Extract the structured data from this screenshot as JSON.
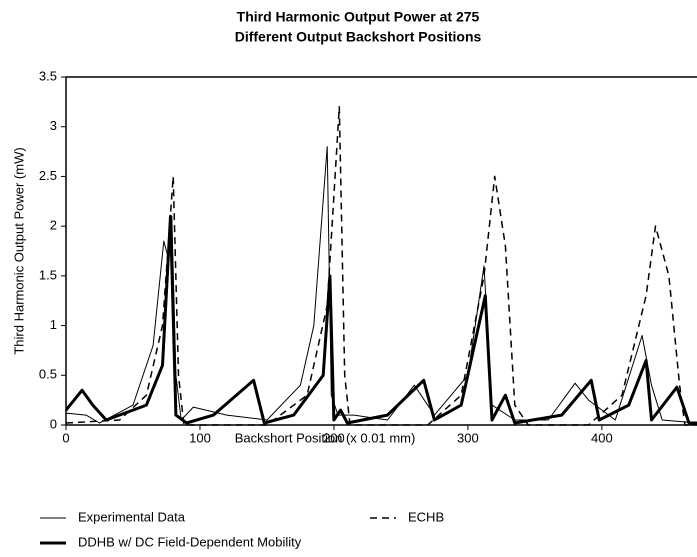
{
  "chart_data": {
    "type": "line",
    "title": [
      "Third Harmonic Output Power at 275",
      "Different Output Backshort Positions"
    ],
    "x_label": "Backshort Position (x 0.01 mm)",
    "y_label": "Third Harmonic Output Power (mW)",
    "xlim": [
      0,
      471
    ],
    "ylim": [
      0,
      3.5
    ],
    "xticks": [
      0,
      100,
      200,
      300,
      400
    ],
    "yticks": [
      0,
      0.5,
      1,
      1.5,
      2,
      2.5,
      3,
      3.5
    ],
    "series": [
      {
        "name": "Experimental Data",
        "color": "#000000",
        "width": 1,
        "dash": false,
        "x": [
          0,
          15,
          25,
          50,
          65,
          73,
          76,
          79,
          82,
          86,
          95,
          120,
          150,
          175,
          185,
          195,
          198,
          203,
          215,
          240,
          260,
          275,
          300,
          312,
          318,
          335,
          360,
          380,
          390,
          410,
          430,
          437,
          445,
          471
        ],
        "values": [
          0.12,
          0.1,
          0.02,
          0.2,
          0.8,
          1.85,
          1.7,
          2.1,
          0.5,
          0.05,
          0.18,
          0.1,
          0.05,
          0.4,
          1.0,
          2.8,
          0.3,
          0.1,
          0.1,
          0.05,
          0.4,
          0.1,
          0.5,
          1.6,
          0.2,
          0.05,
          0.05,
          0.42,
          0.25,
          0.05,
          0.9,
          0.4,
          0.05,
          0.02
        ]
      },
      {
        "name": "ECHB",
        "color": "#000000",
        "width": 1.5,
        "dash": true,
        "x": [
          0,
          40,
          60,
          72,
          80,
          84,
          88,
          150,
          180,
          195,
          204,
          208,
          212,
          270,
          295,
          312,
          320,
          328,
          335,
          345,
          390,
          415,
          433,
          440,
          450,
          458,
          462,
          471
        ],
        "values": [
          0.02,
          0.05,
          0.3,
          1.0,
          2.5,
          0.5,
          0.0,
          0.0,
          0.3,
          1.2,
          3.2,
          0.5,
          0.0,
          0.0,
          0.3,
          1.5,
          2.5,
          1.8,
          0.2,
          0.0,
          0.0,
          0.3,
          1.3,
          2.0,
          1.5,
          0.4,
          0.0,
          0.0
        ]
      },
      {
        "name": "DDHB w/ DC Field-Dependent Mobility",
        "color": "#000000",
        "width": 3,
        "dash": false,
        "x": [
          0,
          12,
          20,
          30,
          60,
          72,
          78,
          82,
          90,
          110,
          140,
          148,
          170,
          192,
          197,
          200,
          205,
          210,
          240,
          267,
          275,
          295,
          313,
          318,
          328,
          335,
          370,
          392,
          398,
          420,
          433,
          437,
          456,
          465,
          471
        ],
        "values": [
          0.15,
          0.35,
          0.2,
          0.05,
          0.2,
          0.6,
          2.1,
          0.1,
          0.02,
          0.1,
          0.45,
          0.02,
          0.1,
          0.5,
          1.5,
          0.05,
          0.15,
          0.02,
          0.1,
          0.45,
          0.05,
          0.2,
          1.3,
          0.05,
          0.3,
          0.02,
          0.1,
          0.45,
          0.05,
          0.2,
          0.65,
          0.05,
          0.38,
          0.02,
          0.02
        ]
      }
    ]
  }
}
